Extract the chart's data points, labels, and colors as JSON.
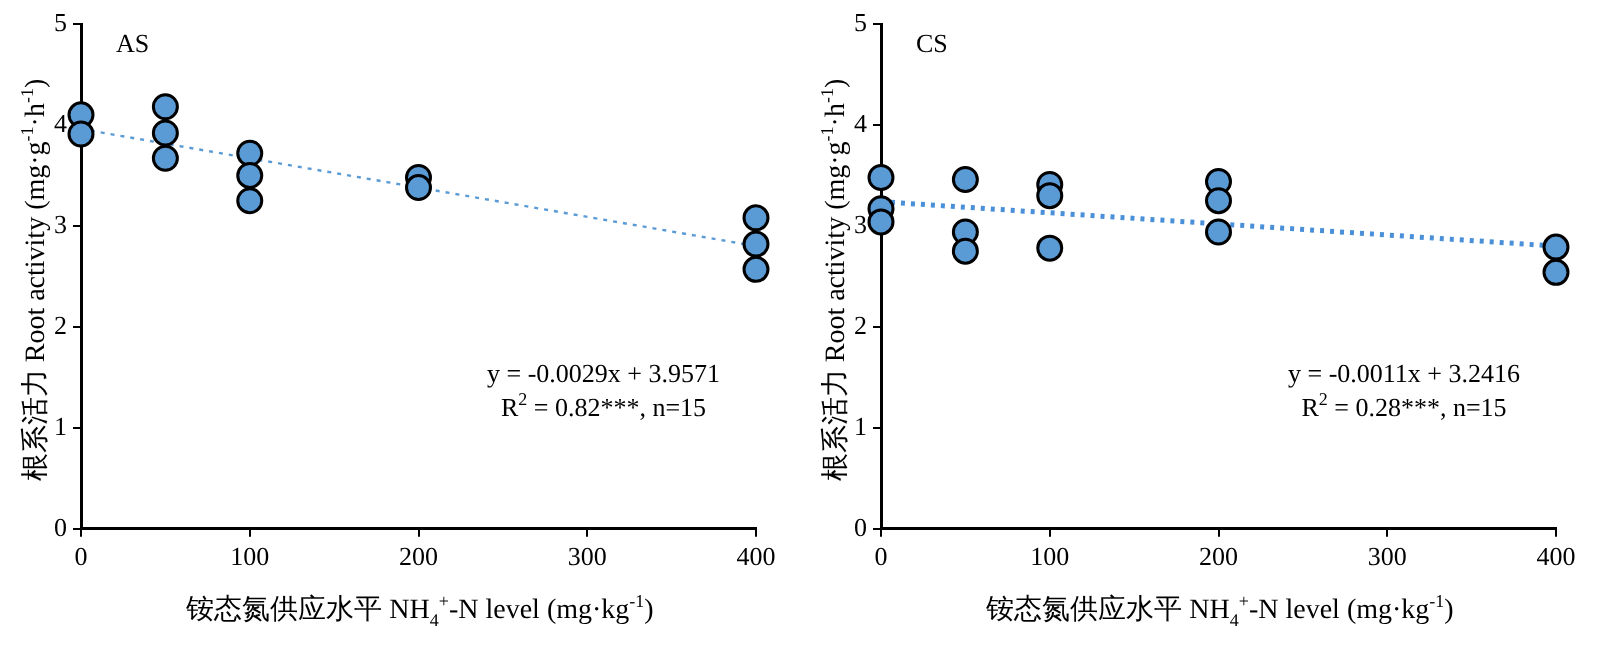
{
  "chart_data": [
    {
      "type": "scatter",
      "xlabel": "铵态氮供应水平 NH$_{4}$$^{+}$-N level (mg·kg$^{-1}$)",
      "ylabel": "根系活力 Root activity (mg·g$^{-1}$·h$^{-1}$)",
      "annotations": [
        "AS",
        "y = -0.0029x + 3.9571",
        "R$^{2}$ = 0.82***, n=15"
      ],
      "xlim": [
        0,
        400
      ],
      "ylim": [
        0,
        5
      ],
      "xticks": [
        0,
        100,
        200,
        300,
        400
      ],
      "yticks": [
        0,
        1,
        2,
        3,
        4,
        5
      ],
      "marker": "circle",
      "series": [
        {
          "color": "#5b9bd5",
          "x": [
            0,
            0,
            50,
            50,
            50,
            100,
            100,
            100,
            200,
            200,
            400,
            400,
            400
          ],
          "values": [
            4.1,
            3.91,
            4.18,
            3.92,
            3.67,
            3.72,
            3.5,
            3.25,
            3.48,
            3.38,
            3.08,
            2.82,
            2.57
          ]
        },
        {
          "type": "line",
          "color": "#5b9bd5",
          "line_style": "dotted",
          "marker": "none",
          "x": [
            0,
            400
          ],
          "values": [
            3.96,
            2.8
          ]
        }
      ]
    },
    {
      "type": "scatter",
      "xlabel": "铵态氮供应水平 NH$_{4}$$^{+}$-N level (mg·kg$^{-1}$)",
      "ylabel": "根系活力 Root activity (mg·g$^{-1}$·h$^{-1}$)",
      "annotations": [
        "CS",
        "y = -0.0011x + 3.2416",
        "R$^{2}$ = 0.28***, n=15"
      ],
      "xlim": [
        0,
        400
      ],
      "ylim": [
        0,
        5
      ],
      "xticks": [
        0,
        100,
        200,
        300,
        400
      ],
      "yticks": [
        0,
        1,
        2,
        3,
        4,
        5
      ],
      "marker": "circle",
      "series": [
        {
          "color": "#5b9bd5",
          "x": [
            0,
            0,
            0,
            50,
            50,
            50,
            100,
            100,
            100,
            200,
            200,
            200,
            400,
            400
          ],
          "values": [
            3.48,
            3.17,
            3.04,
            3.46,
            2.94,
            2.75,
            3.41,
            3.3,
            2.78,
            3.44,
            3.25,
            2.94,
            2.79,
            2.54
          ]
        },
        {
          "type": "line",
          "color": "#4a90d9",
          "line_style": "dotted",
          "marker": "none",
          "x": [
            0,
            400
          ],
          "values": [
            3.24,
            2.8
          ]
        }
      ]
    }
  ]
}
